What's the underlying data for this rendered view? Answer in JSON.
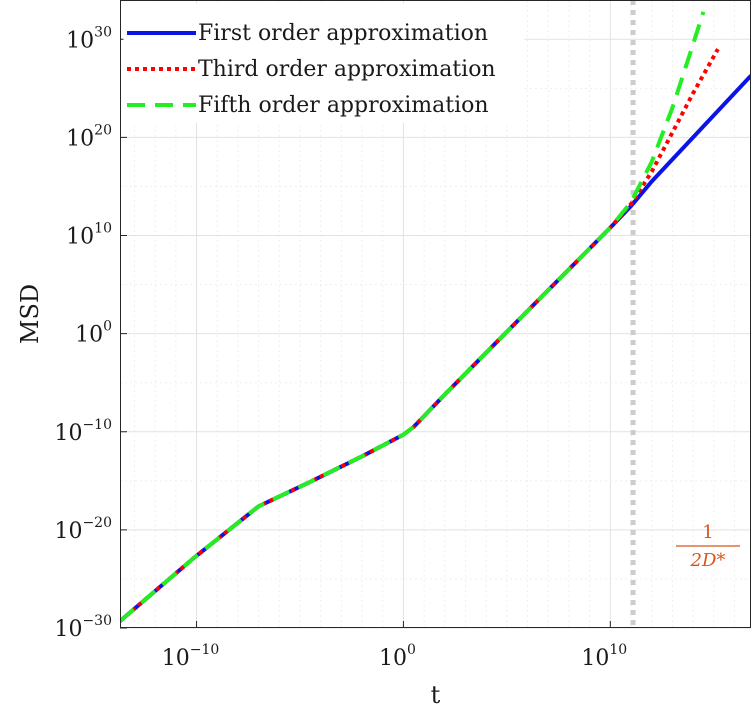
{
  "chart_data": {
    "type": "line",
    "xlabel": "t",
    "ylabel": "MSD",
    "xscale": "log",
    "yscale": "log",
    "xlim_exp": [
      -13.7,
      16.8
    ],
    "ylim_exp": [
      -30,
      34
    ],
    "grid": true,
    "legend_position": "top-left",
    "x_ticks": [
      {
        "base": "10",
        "exp": "−10",
        "value_exp": -10
      },
      {
        "base": "10",
        "exp": "0",
        "value_exp": 0
      },
      {
        "base": "10",
        "exp": "10",
        "value_exp": 10
      }
    ],
    "y_ticks": [
      {
        "base": "10",
        "exp": "−30",
        "value_exp": -30
      },
      {
        "base": "10",
        "exp": "−20",
        "value_exp": -20
      },
      {
        "base": "10",
        "exp": "−10",
        "value_exp": -10
      },
      {
        "base": "10",
        "exp": "0",
        "value_exp": 0
      },
      {
        "base": "10",
        "exp": "10",
        "value_exp": 10
      },
      {
        "base": "10",
        "exp": "20",
        "value_exp": 20
      },
      {
        "base": "10",
        "exp": "30",
        "value_exp": 30
      }
    ],
    "series": [
      {
        "name": "First order approximation",
        "color": "#0b14e6",
        "style": "solid",
        "points_log10": [
          [
            -13.7,
            -29.3
          ],
          [
            -10.1,
            -22.8
          ],
          [
            -7,
            -17.6
          ],
          [
            -4.5,
            -15.1
          ],
          [
            -2,
            -12.5
          ],
          [
            0,
            -10.3
          ],
          [
            0.5,
            -9.5
          ],
          [
            2,
            -6.2
          ],
          [
            5,
            0.2
          ],
          [
            10,
            10.8
          ],
          [
            11,
            13
          ],
          [
            12,
            15.5
          ],
          [
            16.8,
            26.3
          ]
        ]
      },
      {
        "name": "Third order approximation",
        "color": "#ff0000",
        "style": "dotted",
        "points_log10": [
          [
            -13.7,
            -29.3
          ],
          [
            -10.1,
            -22.8
          ],
          [
            -7,
            -17.6
          ],
          [
            -4.5,
            -15.1
          ],
          [
            -2,
            -12.5
          ],
          [
            0,
            -10.3
          ],
          [
            0.5,
            -9.5
          ],
          [
            2,
            -6.2
          ],
          [
            5,
            0.2
          ],
          [
            10,
            10.8
          ],
          [
            11,
            13.2
          ],
          [
            12,
            16.5
          ],
          [
            13,
            20.5
          ],
          [
            14,
            24.5
          ],
          [
            15.2,
            29
          ]
        ]
      },
      {
        "name": "Fifth order approximation",
        "color": "#22ee22",
        "style": "dashed",
        "points_log10": [
          [
            -13.7,
            -29.3
          ],
          [
            -10.1,
            -22.8
          ],
          [
            -7,
            -17.6
          ],
          [
            -4.5,
            -15.1
          ],
          [
            -2,
            -12.5
          ],
          [
            0,
            -10.3
          ],
          [
            0.5,
            -9.5
          ],
          [
            2,
            -6.2
          ],
          [
            5,
            0.2
          ],
          [
            10,
            10.8
          ],
          [
            11,
            13.4
          ],
          [
            12,
            17.5
          ],
          [
            13,
            23
          ],
          [
            14,
            29.5
          ],
          [
            14.5,
            32.8
          ]
        ]
      }
    ],
    "reference_line": {
      "x_log10": 11.1,
      "color": "#cccccc",
      "style": "dotted",
      "label_numerator": "1",
      "label_denominator": "2D*",
      "label_color": "#d9541a"
    }
  }
}
